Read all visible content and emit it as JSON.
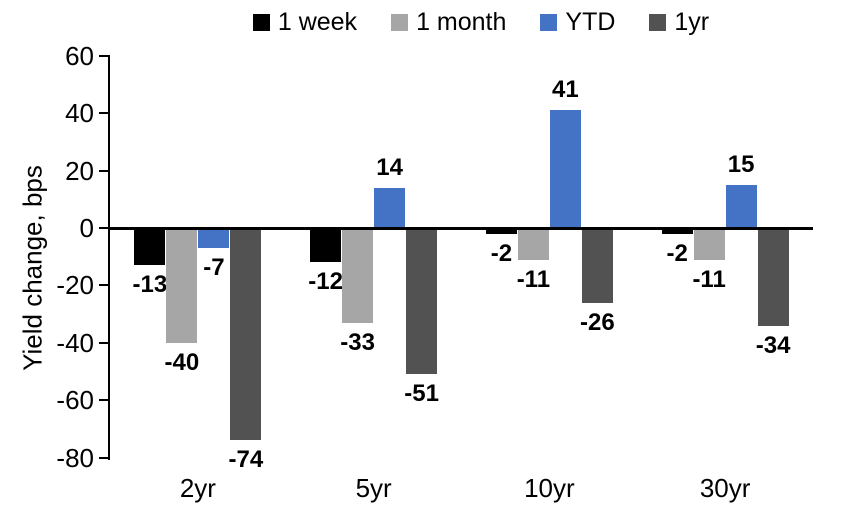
{
  "chart_data": {
    "type": "bar",
    "title": "",
    "ylabel": "Yield change, bps",
    "xlabel": "",
    "categories": [
      "2yr",
      "5yr",
      "10yr",
      "30yr"
    ],
    "series": [
      {
        "name": "1 week",
        "color": "#000000",
        "values": [
          -13,
          -12,
          -2,
          -2
        ]
      },
      {
        "name": "1 month",
        "color": "#A6A6A6",
        "values": [
          -40,
          -33,
          -11,
          -11
        ]
      },
      {
        "name": "YTD",
        "color": "#4472C4",
        "values": [
          -7,
          14,
          41,
          15
        ]
      },
      {
        "name": "1yr",
        "color": "#525252",
        "values": [
          -74,
          -51,
          -26,
          -34
        ]
      }
    ],
    "ylim": [
      -80,
      60
    ],
    "yticks": [
      60,
      40,
      20,
      0,
      -20,
      -40,
      -60,
      -80
    ],
    "grid": false,
    "legend_position": "top",
    "data_labels": true,
    "axis_color": "#000000",
    "text_color": "#000000"
  }
}
